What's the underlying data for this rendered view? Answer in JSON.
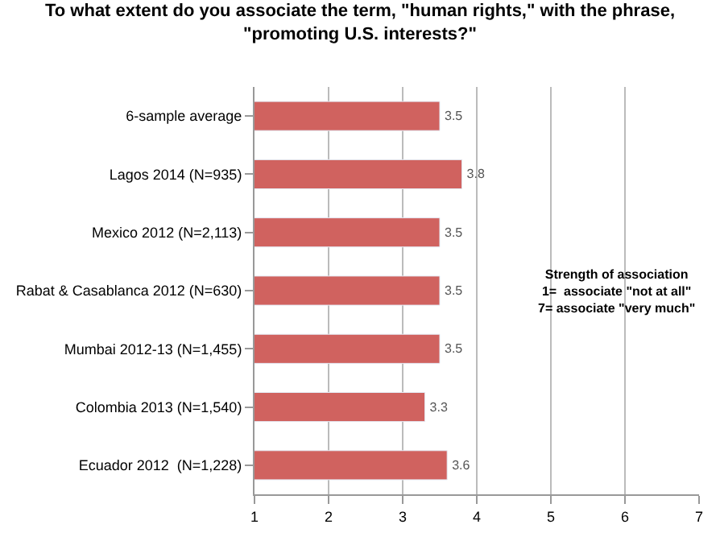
{
  "chart_data": {
    "type": "bar",
    "orientation": "horizontal",
    "title": "To what extent do you associate the term, \"human rights,\" with the phrase,\n\"promoting U.S. interests?\"",
    "categories": [
      "6-sample average",
      "Lagos 2014 (N=935)",
      "Mexico 2012 (N=2,113)",
      "Rabat & Casablanca 2012 (N=630)",
      "Mumbai 2012-13 (N=1,455)",
      "Colombia 2013 (N=1,540)",
      "Ecuador 2012  (N=1,228)"
    ],
    "values": [
      3.5,
      3.8,
      3.5,
      3.5,
      3.5,
      3.3,
      3.6
    ],
    "color": "#d0625f",
    "data_labels": true,
    "xlim": [
      1,
      7
    ],
    "xticks": [
      1,
      2,
      3,
      4,
      5,
      6,
      7
    ],
    "grid": "x",
    "annotations": [
      "Strength of association\n1=  associate \"not at all\"\n7= associate \"very much\""
    ]
  }
}
